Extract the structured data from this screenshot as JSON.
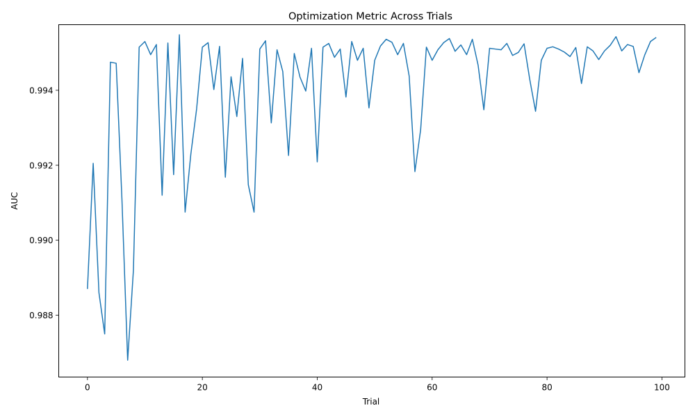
{
  "chart_data": {
    "type": "line",
    "title": "Optimization Metric Across Trials",
    "xlabel": "Trial",
    "ylabel": "AUC",
    "xlim": [
      -5,
      104
    ],
    "ylim": [
      0.98635,
      0.99575
    ],
    "xticks": [
      0,
      20,
      40,
      60,
      80,
      100
    ],
    "xtick_labels": [
      "0",
      "20",
      "40",
      "60",
      "80",
      "100"
    ],
    "yticks": [
      0.988,
      0.99,
      0.992,
      0.994
    ],
    "ytick_labels": [
      "0.988",
      "0.990",
      "0.992",
      "0.994"
    ],
    "grid": false,
    "line_color": "#1f77b4",
    "series": [
      {
        "x": [
          0,
          1,
          2,
          3,
          4,
          5,
          6,
          7,
          8,
          9,
          10,
          11,
          12,
          13,
          14,
          15,
          16,
          17,
          18,
          19,
          20,
          21,
          22,
          23,
          24,
          25,
          26,
          27,
          28,
          29,
          30,
          31,
          32,
          33,
          34,
          35,
          36,
          37,
          38,
          39,
          40,
          41,
          42,
          43,
          44,
          45,
          46,
          47,
          48,
          49,
          50,
          51,
          52,
          53,
          54,
          55,
          56,
          57,
          58,
          59,
          60,
          61,
          62,
          63,
          64,
          65,
          66,
          67,
          68,
          69,
          70,
          71,
          72,
          73,
          74,
          75,
          76,
          77,
          78,
          79,
          80,
          81,
          82,
          83,
          84,
          85,
          86,
          87,
          88,
          89,
          90,
          91,
          92,
          93,
          94,
          95,
          96,
          97,
          98,
          99
        ],
        "values": [
          0.9887,
          0.99205,
          0.9886,
          0.9875,
          0.99475,
          0.99472,
          0.9911,
          0.9868,
          0.9892,
          0.99515,
          0.9953,
          0.99495,
          0.99522,
          0.9912,
          0.99526,
          0.99175,
          0.99548,
          0.99075,
          0.9923,
          0.9935,
          0.99515,
          0.99527,
          0.99402,
          0.99517,
          0.99168,
          0.99436,
          0.9933,
          0.99485,
          0.99148,
          0.99075,
          0.9951,
          0.99532,
          0.99313,
          0.99508,
          0.9945,
          0.99226,
          0.99498,
          0.99435,
          0.99398,
          0.99512,
          0.99209,
          0.99515,
          0.99525,
          0.99488,
          0.9951,
          0.99382,
          0.9953,
          0.9948,
          0.99512,
          0.99353,
          0.9948,
          0.99518,
          0.99536,
          0.99528,
          0.99495,
          0.99525,
          0.99438,
          0.99183,
          0.99295,
          0.99515,
          0.9948,
          0.99508,
          0.99527,
          0.99538,
          0.99504,
          0.99521,
          0.99495,
          0.99536,
          0.99467,
          0.99348,
          0.99512,
          0.9951,
          0.99508,
          0.99525,
          0.99493,
          0.99501,
          0.99524,
          0.99428,
          0.99344,
          0.9948,
          0.99512,
          0.99516,
          0.9951,
          0.99502,
          0.9949,
          0.99514,
          0.99418,
          0.99516,
          0.99505,
          0.99482,
          0.99505,
          0.9952,
          0.99543,
          0.99505,
          0.99522,
          0.99517,
          0.99447,
          0.99494,
          0.9953,
          0.99541
        ]
      }
    ]
  }
}
